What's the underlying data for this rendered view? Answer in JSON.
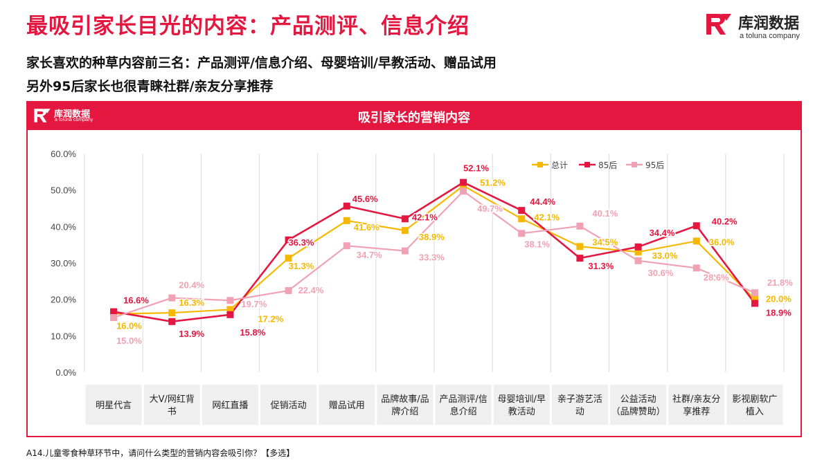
{
  "slide": {
    "title": "最吸引家长目光的内容：产品测评、信息介绍",
    "subline_1": "家长喜欢的种草内容前三名：产品测评/信息介绍、母婴培训/早教活动、赠品试用",
    "subline_2": "另外95后家长也很青睐社群/亲友分享推荐",
    "footnote": "A14.儿童零食种草环节中，请问什么类型的营销内容会吸引你？【多选】"
  },
  "logo": {
    "name": "库润数据",
    "sub": "a toluna company"
  },
  "colors": {
    "brand_red": "#e3173f",
    "total": "#f5b800",
    "post85": "#e3173f",
    "post95": "#f0a2b4",
    "category_bg": "#efefef",
    "grid": "#d9d9d9"
  },
  "chart_data": {
    "type": "line",
    "title": "吸引家长的营销内容",
    "categories": [
      "明星代言",
      "大V/网红背书",
      "网红直播",
      "促销活动",
      "赠品试用",
      "品牌故事/品牌介绍",
      "产品测评/信息介绍",
      "母婴培训/早教活动",
      "亲子游艺活动",
      "公益活动（品牌赞助）",
      "社群/亲友分享推荐",
      "影视剧软广植入"
    ],
    "category_lines": [
      [
        "明星代言"
      ],
      [
        "大V/网红背",
        "书"
      ],
      [
        "网红直播"
      ],
      [
        "促销活动"
      ],
      [
        "赠品试用"
      ],
      [
        "品牌故事/品",
        "牌介绍"
      ],
      [
        "产品测评/信",
        "息介绍"
      ],
      [
        "母婴培训/早",
        "教活动"
      ],
      [
        "亲子游艺活",
        "动"
      ],
      [
        "公益活动",
        "（品牌赞助）"
      ],
      [
        "社群/亲友分",
        "享推荐"
      ],
      [
        "影视剧软广",
        "植入"
      ]
    ],
    "series": [
      {
        "name": "总计",
        "color": "#f5b800",
        "values": [
          16.0,
          16.3,
          17.2,
          31.3,
          41.6,
          38.9,
          51.2,
          42.1,
          34.5,
          33.0,
          36.0,
          20.0
        ],
        "labels": [
          "16.0%",
          "16.3%",
          "17.2%",
          "31.3%",
          "41.6%",
          "38.9%",
          "51.2%",
          "42.1%",
          "34.5%",
          "33.0%",
          "36.0%",
          "20.0%"
        ]
      },
      {
        "name": "85后",
        "color": "#e3173f",
        "values": [
          16.6,
          13.9,
          15.8,
          36.3,
          45.6,
          42.1,
          52.1,
          44.4,
          31.3,
          34.4,
          40.2,
          18.9
        ],
        "labels": [
          "16.6%",
          "13.9%",
          "15.8%",
          "36.3%",
          "45.6%",
          "42.1%",
          "52.1%",
          "44.4%",
          "31.3%",
          "34.4%",
          "40.2%",
          "18.9%"
        ]
      },
      {
        "name": "95后",
        "color": "#f0a2b4",
        "values": [
          15.0,
          20.4,
          19.7,
          22.4,
          34.7,
          33.3,
          49.7,
          38.1,
          40.1,
          30.6,
          28.6,
          21.8
        ],
        "labels": [
          "15.0%",
          "20.4%",
          "19.7%",
          "22.4%",
          "34.7%",
          "33.3%",
          "49.7%",
          "38.1%",
          "40.1%",
          "30.6%",
          "28.6%",
          "21.8%"
        ]
      }
    ],
    "ylim": [
      0,
      60
    ],
    "yticks": [
      0,
      10,
      20,
      30,
      40,
      50,
      60
    ],
    "ytick_labels": [
      "0.0%",
      "10.0%",
      "20.0%",
      "30.0%",
      "40.0%",
      "50.0%",
      "60.0%"
    ],
    "xlabel": "",
    "ylabel": "",
    "grid": "vertical",
    "legend": "top-right"
  }
}
